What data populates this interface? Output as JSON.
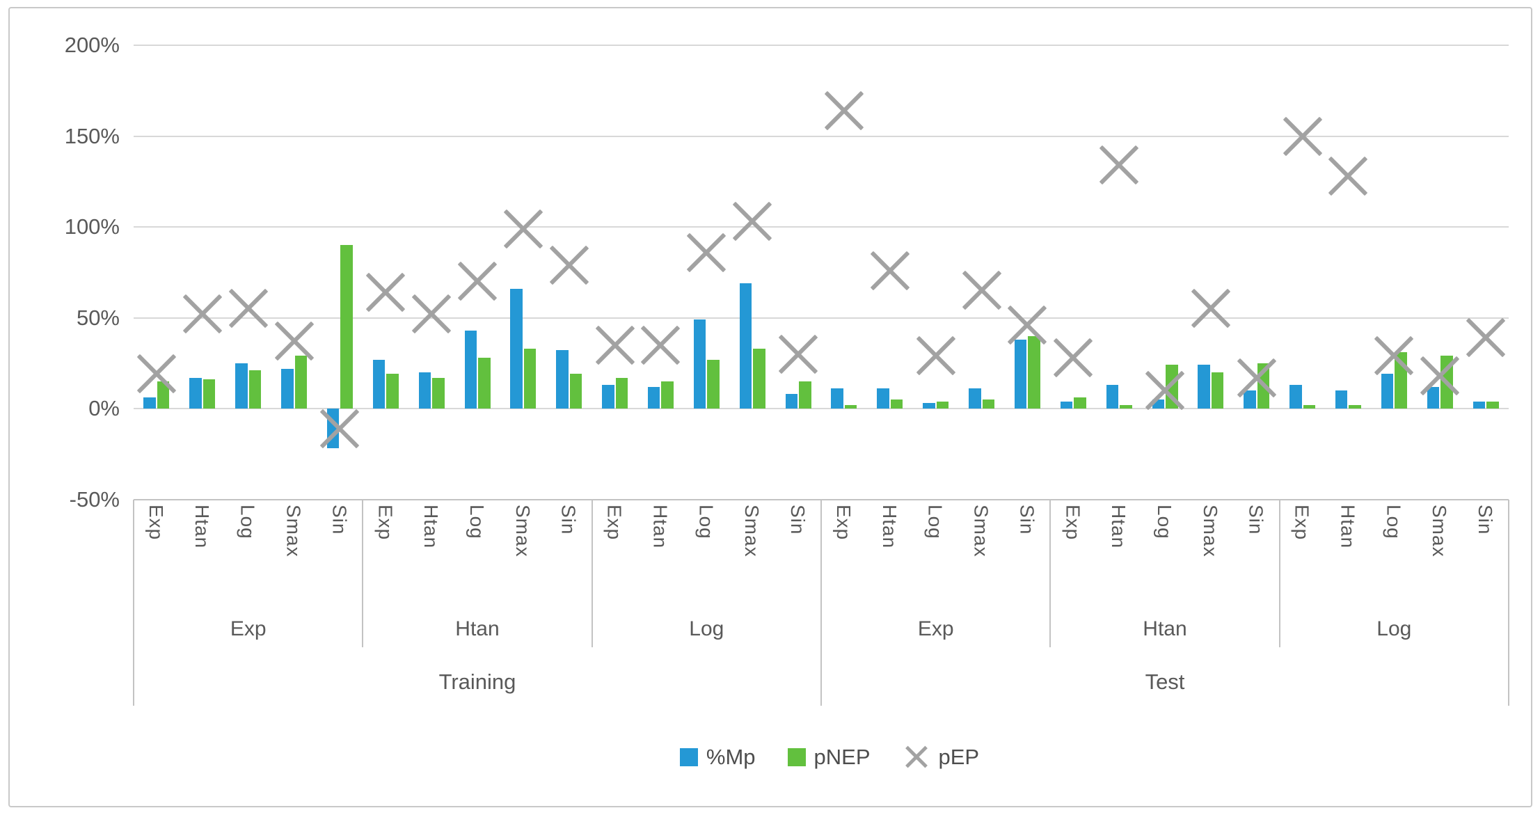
{
  "chart_data": {
    "type": "bar+scatter",
    "title": "",
    "y_axis": {
      "tick_labels": [
        "200%",
        "150%",
        "100%",
        "50%",
        "0%",
        "-50%"
      ],
      "tick_values": [
        200,
        150,
        100,
        50,
        0,
        -50
      ],
      "min": -50,
      "max": 200,
      "unit": "percent",
      "grid": true
    },
    "series": [
      {
        "name": "%Mp",
        "key": "Mp",
        "marker": "square",
        "color": "#2498d5"
      },
      {
        "name": "pNEP",
        "key": "pNEP",
        "marker": "square",
        "color": "#62c03e"
      },
      {
        "name": "pEP",
        "key": "pEP",
        "marker": "x",
        "color": "#a2a2a2"
      }
    ],
    "legend": {
      "position": "bottom",
      "items": [
        "%Mp",
        "pNEP",
        "pEP"
      ]
    },
    "axis_levels": [
      "activation",
      "function-group",
      "dataset"
    ],
    "sections": [
      {
        "top": "Training",
        "mid": "Exp",
        "categories": [
          {
            "label": "Exp",
            "Mp": 6,
            "pNEP": 15,
            "pEP": 19
          },
          {
            "label": "Htan",
            "Mp": 17,
            "pNEP": 16,
            "pEP": 52
          },
          {
            "label": "Log",
            "Mp": 25,
            "pNEP": 21,
            "pEP": 55
          },
          {
            "label": "Smax",
            "Mp": 22,
            "pNEP": 29,
            "pEP": 37
          },
          {
            "label": "Sin",
            "Mp": -22,
            "pNEP": 90,
            "pEP": -11
          }
        ]
      },
      {
        "top": "Training",
        "mid": "Htan",
        "categories": [
          {
            "label": "Exp",
            "Mp": 27,
            "pNEP": 19,
            "pEP": 64
          },
          {
            "label": "Htan",
            "Mp": 20,
            "pNEP": 17,
            "pEP": 52
          },
          {
            "label": "Log",
            "Mp": 43,
            "pNEP": 28,
            "pEP": 70
          },
          {
            "label": "Smax",
            "Mp": 66,
            "pNEP": 33,
            "pEP": 99
          },
          {
            "label": "Sin",
            "Mp": 32,
            "pNEP": 19,
            "pEP": 79
          }
        ]
      },
      {
        "top": "Training",
        "mid": "Log",
        "categories": [
          {
            "label": "Exp",
            "Mp": 13,
            "pNEP": 17,
            "pEP": 35
          },
          {
            "label": "Htan",
            "Mp": 12,
            "pNEP": 15,
            "pEP": 35
          },
          {
            "label": "Log",
            "Mp": 49,
            "pNEP": 27,
            "pEP": 86
          },
          {
            "label": "Smax",
            "Mp": 69,
            "pNEP": 33,
            "pEP": 103
          },
          {
            "label": "Sin",
            "Mp": 8,
            "pNEP": 15,
            "pEP": 30
          }
        ]
      },
      {
        "top": "Test",
        "mid": "Exp",
        "categories": [
          {
            "label": "Exp",
            "Mp": 11,
            "pNEP": 2,
            "pEP": 164
          },
          {
            "label": "Htan",
            "Mp": 11,
            "pNEP": 5,
            "pEP": 76
          },
          {
            "label": "Log",
            "Mp": 3,
            "pNEP": 4,
            "pEP": 29
          },
          {
            "label": "Smax",
            "Mp": 11,
            "pNEP": 5,
            "pEP": 65
          },
          {
            "label": "Sin",
            "Mp": 38,
            "pNEP": 40,
            "pEP": 46
          }
        ]
      },
      {
        "top": "Test",
        "mid": "Htan",
        "categories": [
          {
            "label": "Exp",
            "Mp": 4,
            "pNEP": 6,
            "pEP": 28
          },
          {
            "label": "Htan",
            "Mp": 13,
            "pNEP": 2,
            "pEP": 134
          },
          {
            "label": "Log",
            "Mp": 5,
            "pNEP": 24,
            "pEP": 10
          },
          {
            "label": "Smax",
            "Mp": 24,
            "pNEP": 20,
            "pEP": 55
          },
          {
            "label": "Sin",
            "Mp": 10,
            "pNEP": 25,
            "pEP": 17
          }
        ]
      },
      {
        "top": "Test",
        "mid": "Log",
        "categories": [
          {
            "label": "Exp",
            "Mp": 13,
            "pNEP": 2,
            "pEP": 150
          },
          {
            "label": "Htan",
            "Mp": 10,
            "pNEP": 2,
            "pEP": 128
          },
          {
            "label": "Log",
            "Mp": 19,
            "pNEP": 31,
            "pEP": 29
          },
          {
            "label": "Smax",
            "Mp": 12,
            "pNEP": 29,
            "pEP": 18
          },
          {
            "label": "Sin",
            "Mp": 4,
            "pNEP": 4,
            "pEP": 39
          }
        ]
      }
    ],
    "panel_labels": [
      "Training",
      "Test"
    ],
    "colors": {
      "grid": "#d8d8d8",
      "axis": "#c3c3c3",
      "text": "#595959",
      "frame_border": "#c9c9c9"
    }
  }
}
